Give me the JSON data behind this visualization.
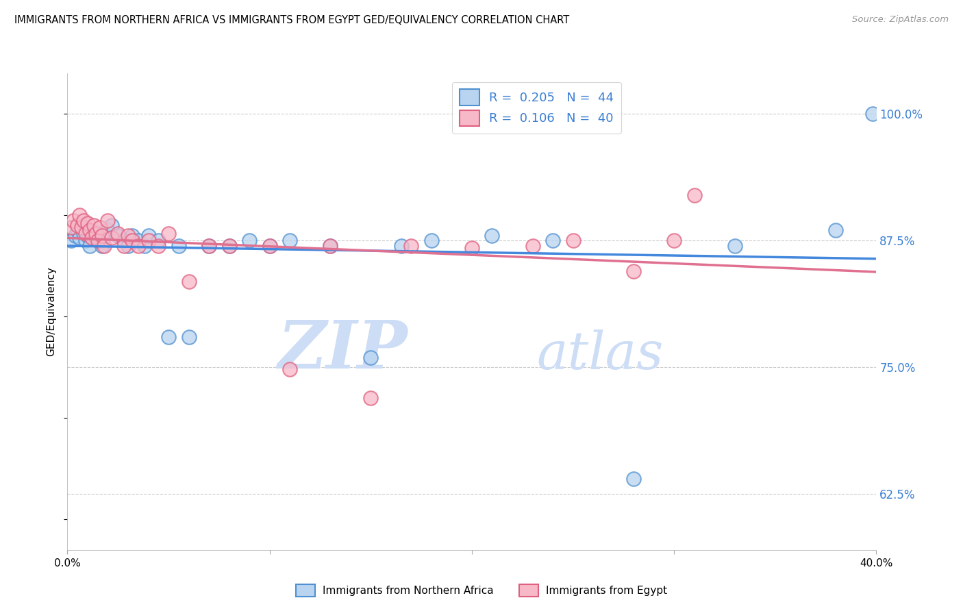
{
  "title": "IMMIGRANTS FROM NORTHERN AFRICA VS IMMIGRANTS FROM EGYPT GED/EQUIVALENCY CORRELATION CHART",
  "source": "Source: ZipAtlas.com",
  "ylabel": "GED/Equivalency",
  "ytick_vals": [
    0.625,
    0.75,
    0.875,
    1.0
  ],
  "ytick_labels": [
    "62.5%",
    "75.0%",
    "87.5%",
    "100.0%"
  ],
  "xmin": 0.0,
  "xmax": 0.4,
  "ymin": 0.57,
  "ymax": 1.04,
  "series1_label": "Immigrants from Northern Africa",
  "series2_label": "Immigrants from Egypt",
  "series1_fill": "#b8d4f0",
  "series2_fill": "#f7b8c8",
  "series1_edge": "#5090d0",
  "series2_edge": "#e06080",
  "line1_color": "#4488dd",
  "line2_color": "#e07090",
  "watermark_zip": "ZIP",
  "watermark_atlas": "atlas",
  "watermark_color": "#ccddf5",
  "scatter1_x": [
    0.002,
    0.004,
    0.005,
    0.006,
    0.007,
    0.008,
    0.009,
    0.01,
    0.011,
    0.012,
    0.013,
    0.014,
    0.015,
    0.016,
    0.017,
    0.018,
    0.02,
    0.022,
    0.025,
    0.028,
    0.03,
    0.032,
    0.035,
    0.038,
    0.04,
    0.045,
    0.05,
    0.055,
    0.06,
    0.07,
    0.08,
    0.09,
    0.1,
    0.11,
    0.13,
    0.15,
    0.165,
    0.18,
    0.21,
    0.24,
    0.28,
    0.33,
    0.38,
    0.398
  ],
  "scatter1_y": [
    0.875,
    0.88,
    0.885,
    0.878,
    0.89,
    0.882,
    0.875,
    0.88,
    0.87,
    0.885,
    0.882,
    0.878,
    0.88,
    0.875,
    0.87,
    0.88,
    0.885,
    0.89,
    0.88,
    0.875,
    0.87,
    0.88,
    0.875,
    0.87,
    0.88,
    0.875,
    0.78,
    0.87,
    0.78,
    0.87,
    0.87,
    0.875,
    0.87,
    0.875,
    0.87,
    0.76,
    0.87,
    0.875,
    0.88,
    0.875,
    0.64,
    0.87,
    0.885,
    1.0
  ],
  "scatter2_x": [
    0.002,
    0.003,
    0.005,
    0.006,
    0.007,
    0.008,
    0.009,
    0.01,
    0.011,
    0.012,
    0.013,
    0.014,
    0.015,
    0.016,
    0.017,
    0.018,
    0.02,
    0.022,
    0.025,
    0.028,
    0.03,
    0.032,
    0.035,
    0.04,
    0.045,
    0.05,
    0.06,
    0.07,
    0.08,
    0.1,
    0.11,
    0.13,
    0.15,
    0.17,
    0.2,
    0.23,
    0.25,
    0.28,
    0.3,
    0.31
  ],
  "scatter2_y": [
    0.888,
    0.895,
    0.89,
    0.9,
    0.888,
    0.895,
    0.882,
    0.892,
    0.885,
    0.878,
    0.89,
    0.882,
    0.875,
    0.888,
    0.88,
    0.87,
    0.895,
    0.878,
    0.882,
    0.87,
    0.88,
    0.875,
    0.87,
    0.875,
    0.87,
    0.882,
    0.835,
    0.87,
    0.87,
    0.87,
    0.748,
    0.87,
    0.72,
    0.87,
    0.868,
    0.87,
    0.875,
    0.845,
    0.875,
    0.92
  ]
}
